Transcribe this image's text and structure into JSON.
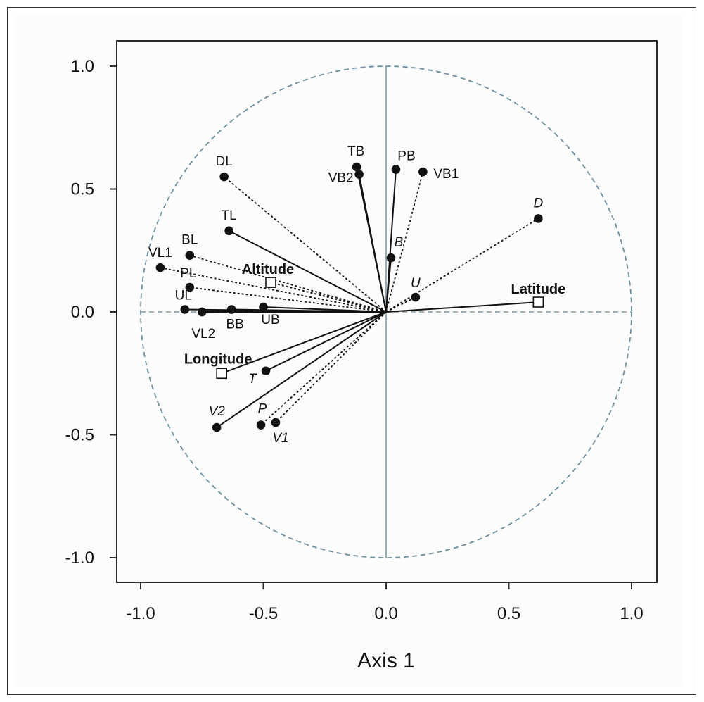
{
  "chart_data": {
    "type": "scatter",
    "title": "",
    "xlabel": "Axis 1",
    "ylabel": "",
    "xlim": [
      -1.1,
      1.1
    ],
    "ylim": [
      -1.1,
      1.1
    ],
    "x_ticks": [
      "-1.0",
      "-0.5",
      "0.0",
      "0.5",
      "1.0"
    ],
    "y_ticks": [
      "1.0",
      "0.5",
      "0.0",
      "-0.5",
      "-1.0"
    ],
    "x_tick_values": [
      -1.0,
      -0.5,
      0.0,
      0.5,
      1.0
    ],
    "y_tick_values": [
      1.0,
      0.5,
      0.0,
      -0.5,
      -1.0
    ],
    "unit_circle": true,
    "grid": false,
    "points": [
      {
        "label": "DL",
        "x": -0.66,
        "y": 0.55,
        "line": "dashed",
        "italic": false
      },
      {
        "label": "TL",
        "x": -0.64,
        "y": 0.33,
        "line": "solid",
        "italic": false
      },
      {
        "label": "BL",
        "x": -0.8,
        "y": 0.23,
        "line": "dashed",
        "italic": false
      },
      {
        "label": "VL1",
        "x": -0.92,
        "y": 0.18,
        "line": "dashed",
        "italic": false
      },
      {
        "label": "PL",
        "x": -0.8,
        "y": 0.1,
        "line": "dashed",
        "italic": false
      },
      {
        "label": "UL",
        "x": -0.82,
        "y": 0.01,
        "line": "solid",
        "italic": false
      },
      {
        "label": "VL2",
        "x": -0.75,
        "y": 0.0,
        "line": "solid",
        "italic": false
      },
      {
        "label": "BB",
        "x": -0.63,
        "y": 0.01,
        "line": "solid",
        "italic": false
      },
      {
        "label": "UB",
        "x": -0.5,
        "y": 0.02,
        "line": "solid",
        "italic": false
      },
      {
        "label": "TB",
        "x": -0.12,
        "y": 0.59,
        "line": "solid",
        "italic": false
      },
      {
        "label": "VB2",
        "x": -0.11,
        "y": 0.56,
        "line": "solid",
        "italic": false
      },
      {
        "label": "PB",
        "x": 0.04,
        "y": 0.58,
        "line": "solid",
        "italic": false
      },
      {
        "label": "VB1",
        "x": 0.15,
        "y": 0.57,
        "line": "dashed",
        "italic": false
      },
      {
        "label": "B",
        "x": 0.02,
        "y": 0.22,
        "line": "solid",
        "italic": true
      },
      {
        "label": "U",
        "x": 0.12,
        "y": 0.06,
        "line": "dashed",
        "italic": true
      },
      {
        "label": "D",
        "x": 0.62,
        "y": 0.38,
        "line": "dashed",
        "italic": true
      },
      {
        "label": "T",
        "x": -0.49,
        "y": -0.24,
        "line": "solid",
        "italic": true
      },
      {
        "label": "V2",
        "x": -0.69,
        "y": -0.47,
        "line": "solid",
        "italic": true
      },
      {
        "label": "P",
        "x": -0.51,
        "y": -0.46,
        "line": "dashed",
        "italic": true
      },
      {
        "label": "V1",
        "x": -0.45,
        "y": -0.45,
        "line": "dashed",
        "italic": true
      }
    ],
    "environmental_vectors": [
      {
        "label": "Altitude",
        "x": -0.47,
        "y": 0.12,
        "line": "dashed"
      },
      {
        "label": "Latitude",
        "x": 0.62,
        "y": 0.04,
        "line": "solid"
      },
      {
        "label": "Longitude",
        "x": -0.67,
        "y": -0.25,
        "line": "solid"
      }
    ]
  }
}
